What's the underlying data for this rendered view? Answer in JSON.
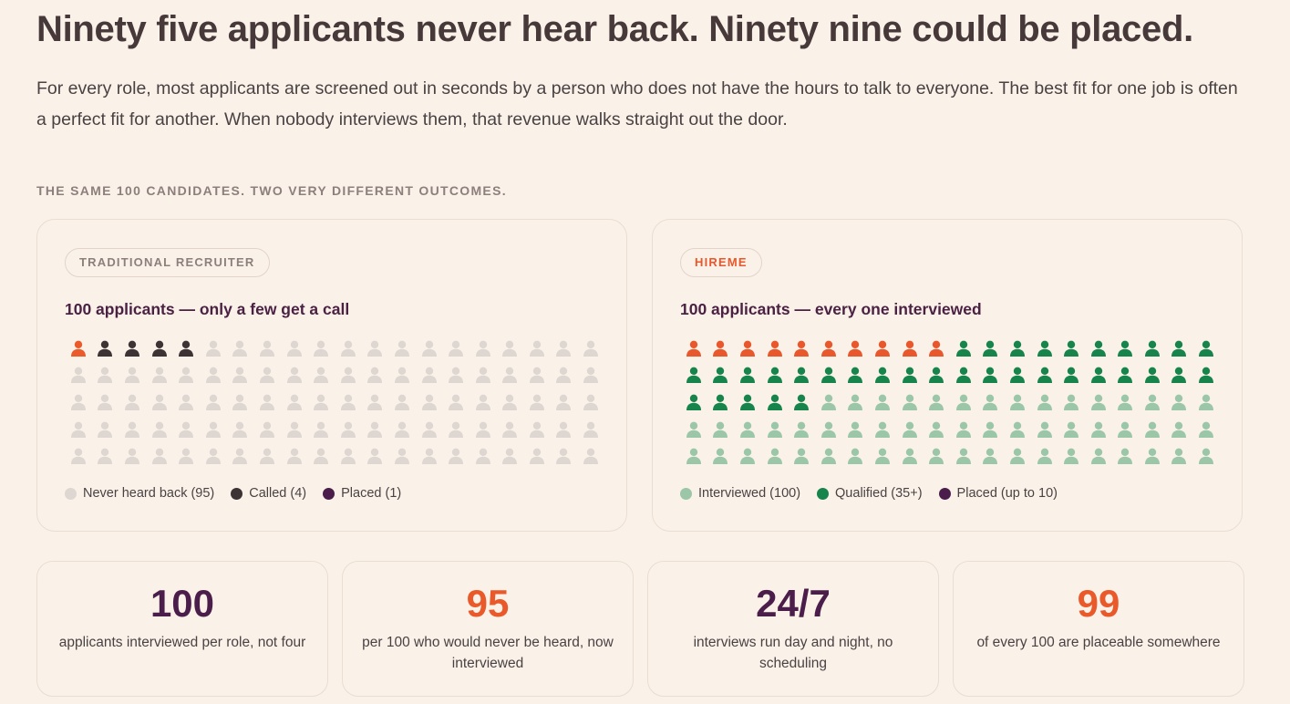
{
  "headline": "Ninety five applicants never hear back. Ninety nine could be placed.",
  "lede": "For every role, most applicants are screened out in seconds by a person who does not have the hours to talk to everyone. The best fit for one job is often a perfect fit for another. When nobody interviews them, that revenue walks straight out the door.",
  "section_label": "THE SAME 100 CANDIDATES. TWO VERY DIFFERENT OUTCOMES.",
  "colors": {
    "placed_traditional": "#ea5a2b",
    "called": "#3d3334",
    "never": "#ddd6d1",
    "placed": "#4a1d4a",
    "placed_hireme": "#e8582c",
    "qualified": "#17844c",
    "interviewed": "#9bc6a8",
    "accent_orange": "#e9592a",
    "accent_purple": "#4a1d4a"
  },
  "traditional": {
    "tag": "TRADITIONAL RECRUITER",
    "heading": "100 applicants — only a few get a call",
    "icon": "person-icon",
    "counts": {
      "placed": 1,
      "called": 4,
      "never": 95
    },
    "legend": [
      {
        "label": "Never heard back (95)",
        "color": "#ddd6d1"
      },
      {
        "label": "Called (4)",
        "color": "#3d3334"
      },
      {
        "label": "Placed (1)",
        "color": "#4a1d4a"
      }
    ]
  },
  "hireme": {
    "tag": "HIREME",
    "heading": "100 applicants — every one interviewed",
    "icon": "person-icon",
    "counts": {
      "placed": 10,
      "qualified": 35,
      "interviewed": 55
    },
    "legend": [
      {
        "label": "Interviewed (100)",
        "color": "#9bc6a8"
      },
      {
        "label": "Qualified (35+)",
        "color": "#17844c"
      },
      {
        "label": "Placed (up to 10)",
        "color": "#4a1d4a"
      }
    ]
  },
  "stats": [
    {
      "value": "100",
      "caption": "applicants interviewed per role, not four",
      "color": "#4a1d4a"
    },
    {
      "value": "95",
      "caption": "per 100 who would never be heard, now interviewed",
      "color": "#e9592a"
    },
    {
      "value": "24/7",
      "caption": "interviews run day and night, no scheduling",
      "color": "#4a1d4a"
    },
    {
      "value": "99",
      "caption": "of every 100 are placeable somewhere",
      "color": "#e9592a"
    }
  ]
}
